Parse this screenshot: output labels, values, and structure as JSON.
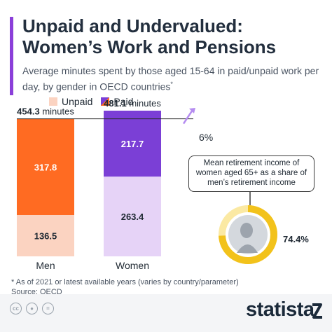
{
  "header": {
    "title_line1": "Unpaid and Undervalued:",
    "title_line2": "Women’s Work and Pensions",
    "subtitle": "Average minutes spent by those aged 15-64 in paid/unpaid work per day, by gender in OECD countries",
    "subtitle_mark": "*"
  },
  "legend": {
    "unpaid": "Unpaid",
    "paid": "Paid"
  },
  "chart_data": {
    "type": "bar",
    "stacked": true,
    "categories": [
      "Men",
      "Women"
    ],
    "series": [
      {
        "name": "Unpaid",
        "values": [
          136.5,
          263.4
        ],
        "color": "#fbd3c1",
        "color_women": "#e6d3f7"
      },
      {
        "name": "Paid",
        "values": [
          317.8,
          217.7
        ],
        "color": "#ff6b22",
        "color_women": "#7b3fd6"
      }
    ],
    "totals": [
      {
        "value": "454.3",
        "unit": "minutes"
      },
      {
        "value": "481.1",
        "unit": "minutes"
      }
    ],
    "gap_label": "6%",
    "ylim": [
      0,
      481.1
    ]
  },
  "pension": {
    "callout": "Mean retirement income of women aged 65+ as a share of men’s retirement income",
    "value": 74.4,
    "label": "74.4%",
    "ring_color": "#f2c21b",
    "ring_track": "#fbe9a3",
    "inner_color": "#d4d8dd"
  },
  "footnote": {
    "line1": "* As of 2021 or latest available years (varies by country/parameter)",
    "line2": "Source: OECD"
  },
  "footer": {
    "brand": "statista",
    "license_icons": [
      "cc-icon",
      "attribution-icon",
      "no-derivatives-icon"
    ]
  }
}
